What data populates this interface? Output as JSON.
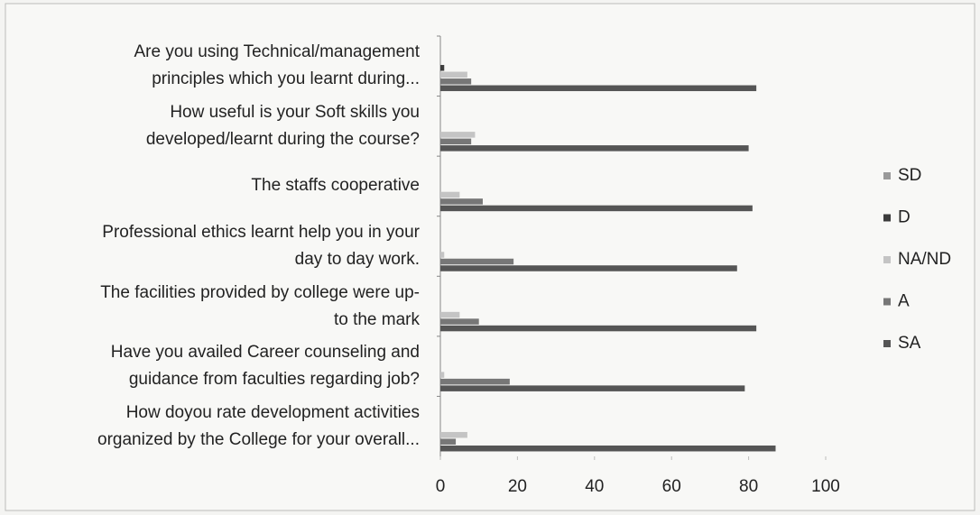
{
  "chart_data": {
    "type": "hbar",
    "categories": [
      "Are you using  Technical/management\nprinciples which you learnt during...",
      "How useful is your Soft skills you\ndeveloped/learnt during the course?",
      "The staffs cooperative",
      "Professional ethics learnt help you in your\nday to day work.",
      "The facilities provided by college were up-\nto the mark",
      "Have you availed Career counseling and\nguidance from faculties regarding job?",
      "How doyou rate development activities\norganized by the College for your overall..."
    ],
    "series": [
      {
        "name": "SD",
        "color": "#9a9a9a",
        "values": [
          0,
          0,
          0,
          0,
          0,
          0,
          0
        ]
      },
      {
        "name": "D",
        "color": "#3c3c3c",
        "values": [
          1,
          0,
          0,
          0,
          0,
          0,
          0
        ]
      },
      {
        "name": "NA/ND",
        "color": "#c4c4c4",
        "values": [
          7,
          9,
          5,
          1,
          5,
          1,
          7
        ]
      },
      {
        "name": "A",
        "color": "#777777",
        "values": [
          8,
          8,
          11,
          19,
          10,
          18,
          4
        ]
      },
      {
        "name": "SA",
        "color": "#555555",
        "values": [
          82,
          80,
          81,
          77,
          82,
          79,
          87
        ]
      }
    ],
    "xlim": [
      0,
      100
    ],
    "xticks": [
      0,
      20,
      40,
      60,
      80,
      100
    ],
    "grid": false
  }
}
